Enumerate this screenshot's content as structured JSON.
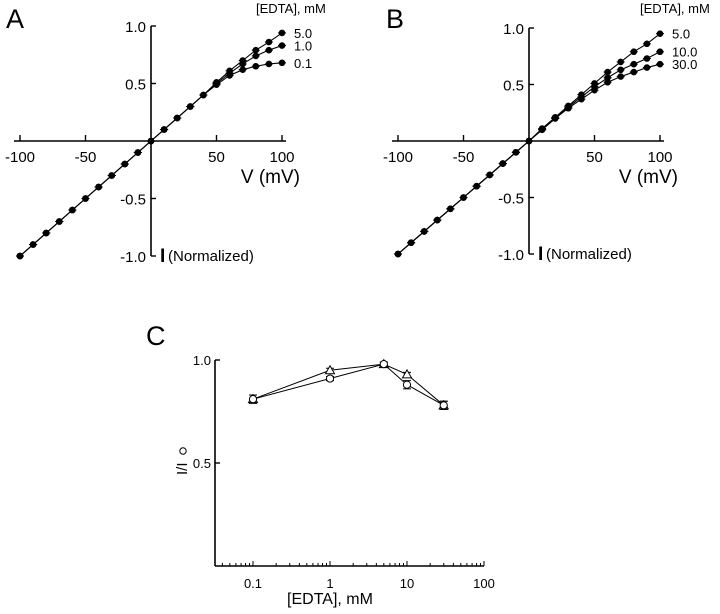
{
  "chart_data": [
    {
      "panel": "A",
      "type": "line",
      "xlabel": "V (mV)",
      "ylabel": "I (Normalized)",
      "xlim": [
        -100,
        100
      ],
      "ylim": [
        -1.0,
        1.0
      ],
      "xticks": [
        -100,
        -50,
        50,
        100
      ],
      "xtick_labels": [
        "-100",
        "-50",
        "50",
        "100"
      ],
      "yticks": [
        1.0,
        0.5,
        -0.5,
        -1.0
      ],
      "ytick_labels": [
        "1.0",
        "0.5",
        "-0.5",
        "-1.0"
      ],
      "legend_title": "[EDTA], mM",
      "marker": "filled-circle",
      "x": [
        -100,
        -90,
        -80,
        -70,
        -60,
        -50,
        -40,
        -30,
        -20,
        -10,
        0,
        10,
        20,
        30,
        40,
        50,
        60,
        70,
        80,
        90,
        100
      ],
      "series": [
        {
          "name": "5.0",
          "values": [
            -1.0,
            -0.9,
            -0.8,
            -0.7,
            -0.6,
            -0.5,
            -0.4,
            -0.3,
            -0.2,
            -0.1,
            0.0,
            0.1,
            0.2,
            0.3,
            0.4,
            0.51,
            0.61,
            0.7,
            0.79,
            0.86,
            0.94
          ]
        },
        {
          "name": "1.0",
          "values": [
            -1.0,
            -0.9,
            -0.8,
            -0.7,
            -0.6,
            -0.5,
            -0.4,
            -0.3,
            -0.2,
            -0.1,
            0.0,
            0.1,
            0.2,
            0.3,
            0.4,
            0.5,
            0.59,
            0.67,
            0.74,
            0.79,
            0.83
          ]
        },
        {
          "name": "0.1",
          "values": [
            -1.0,
            -0.9,
            -0.8,
            -0.7,
            -0.6,
            -0.5,
            -0.4,
            -0.3,
            -0.2,
            -0.1,
            0.0,
            0.1,
            0.2,
            0.3,
            0.4,
            0.49,
            0.57,
            0.62,
            0.65,
            0.67,
            0.68
          ]
        }
      ]
    },
    {
      "panel": "B",
      "type": "line",
      "xlabel": "V (mV)",
      "ylabel": "I (Normalized)",
      "xlim": [
        -100,
        100
      ],
      "ylim": [
        -1.0,
        1.0
      ],
      "xticks": [
        -100,
        -50,
        50,
        100
      ],
      "xtick_labels": [
        "-100",
        "-50",
        "50",
        "100"
      ],
      "yticks": [
        1.0,
        0.5,
        -0.5,
        -1.0
      ],
      "ytick_labels": [
        "1.0",
        "0.5",
        "-0.5",
        "-1.0"
      ],
      "legend_title": "[EDTA], mM",
      "marker": "filled-circle",
      "x": [
        -100,
        -90,
        -80,
        -70,
        -60,
        -50,
        -40,
        -30,
        -20,
        -10,
        0,
        10,
        20,
        30,
        40,
        50,
        60,
        70,
        80,
        90,
        100
      ],
      "series": [
        {
          "name": "5.0",
          "values": [
            -1.0,
            -0.9,
            -0.8,
            -0.7,
            -0.6,
            -0.5,
            -0.4,
            -0.3,
            -0.2,
            -0.1,
            0.0,
            0.11,
            0.21,
            0.31,
            0.41,
            0.51,
            0.61,
            0.7,
            0.79,
            0.86,
            0.95
          ]
        },
        {
          "name": "10.0",
          "values": [
            -1.0,
            -0.9,
            -0.8,
            -0.7,
            -0.6,
            -0.5,
            -0.4,
            -0.3,
            -0.2,
            -0.1,
            0.0,
            0.1,
            0.2,
            0.3,
            0.39,
            0.48,
            0.56,
            0.63,
            0.68,
            0.73,
            0.79
          ]
        },
        {
          "name": "30.0",
          "values": [
            -1.0,
            -0.9,
            -0.8,
            -0.7,
            -0.6,
            -0.5,
            -0.4,
            -0.3,
            -0.2,
            -0.1,
            0.0,
            0.1,
            0.2,
            0.29,
            0.37,
            0.45,
            0.52,
            0.57,
            0.61,
            0.65,
            0.68
          ]
        }
      ]
    },
    {
      "panel": "C",
      "type": "line",
      "xlabel": "[EDTA], mM",
      "ylabel": "I/I₀",
      "xscale": "log",
      "xlim": [
        0.035,
        100
      ],
      "ylim": [
        0.0,
        1.0
      ],
      "xticks": [
        0.1,
        1,
        10,
        100
      ],
      "xtick_labels": [
        "0.1",
        "1",
        "10",
        "100"
      ],
      "yticks": [
        1.0,
        0.5
      ],
      "ytick_labels": [
        "1.0",
        "0.5"
      ],
      "x": [
        0.1,
        1,
        5,
        10,
        30
      ],
      "series": [
        {
          "name": "triangle",
          "marker": "open-triangle",
          "values": [
            0.81,
            0.95,
            0.98,
            0.93,
            0.78
          ],
          "errors": [
            0.02,
            0.01,
            0.01,
            0.01,
            0.02
          ]
        },
        {
          "name": "circle",
          "marker": "open-circle",
          "values": [
            0.81,
            0.91,
            0.98,
            0.88,
            0.78
          ],
          "errors": [
            0.02,
            0.01,
            0.01,
            0.02,
            0.02
          ]
        }
      ]
    }
  ],
  "labels": {
    "panel_a": "A",
    "panel_b": "B",
    "panel_c": "C",
    "normalized": "(Normalized)",
    "i_symbol": "I"
  }
}
